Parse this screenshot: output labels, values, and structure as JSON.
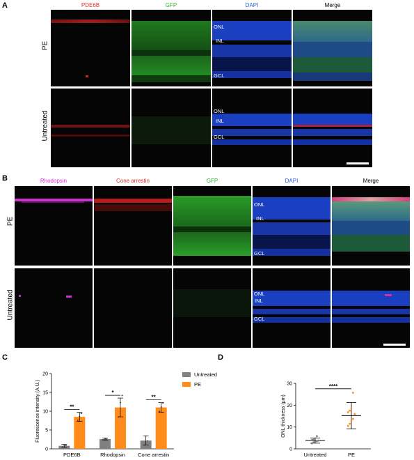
{
  "figure": {
    "panel_labels": {
      "a": "A",
      "b": "B",
      "c": "C",
      "d": "D"
    },
    "colors": {
      "red": "#e03030",
      "green": "#30b030",
      "blue": "#2a5dd8",
      "magenta": "#e030e0",
      "gray": "#808080",
      "orange": "#ff8c1a"
    }
  },
  "panel_a": {
    "headers": [
      "PDE6B",
      "GFP",
      "DAPI",
      "Merge"
    ],
    "header_colors": [
      "#e03030",
      "#30b030",
      "#2a5dd8",
      "#000000"
    ],
    "rows": [
      "PE",
      "Untreated"
    ],
    "layers_top": [
      "ONL",
      "INL",
      "GCL"
    ],
    "layers_bottom": [
      "ONL",
      "INL",
      "GCL"
    ]
  },
  "panel_b": {
    "headers": [
      "Rhodopsin",
      "Cone arrestin",
      "GFP",
      "DAPI",
      "Merge"
    ],
    "header_colors": [
      "#e030e0",
      "#e03030",
      "#30b030",
      "#2a5dd8",
      "#000000"
    ],
    "rows": [
      "PE",
      "Untreated"
    ],
    "layers_top": [
      "ONL",
      "INL",
      "GCL"
    ],
    "layers_bottom": [
      "ONL",
      "INL",
      "GCL"
    ]
  },
  "chart_data": [
    {
      "type": "bar",
      "categories": [
        "PDE6B",
        "Rhodopsin",
        "Cone arrestin"
      ],
      "series": [
        {
          "name": "Untreated",
          "values": [
            0.8,
            2.6,
            2.2
          ],
          "errors": [
            0.4,
            0.3,
            1.2
          ],
          "color": "#808080",
          "points": [
            [
              0.5,
              1.0,
              0.9
            ],
            [
              2.4,
              2.7,
              2.6
            ],
            [
              1.0,
              3.4,
              2.1
            ]
          ]
        },
        {
          "name": "PE",
          "values": [
            8.5,
            11.0,
            11.0
          ],
          "errors": [
            1.2,
            2.5,
            1.3
          ],
          "color": "#ff8c1a",
          "points": [
            [
              7.6,
              8.6,
              9.4
            ],
            [
              8.5,
              12.3,
              14.2
            ],
            [
              9.9,
              11.1,
              12.2
            ]
          ]
        }
      ],
      "significance": [
        "**",
        "*",
        "**"
      ],
      "ylabel": "Fluorescence intensity (A.U.)",
      "ylim": [
        0,
        20
      ],
      "yticks": [
        "0",
        "5",
        "10",
        "15",
        "20"
      ],
      "legend": "top-right"
    },
    {
      "type": "scatter",
      "categories": [
        "Untreated",
        "PE"
      ],
      "means": [
        3.8,
        15.2
      ],
      "sd": [
        1.2,
        6.0
      ],
      "points": [
        [
          2.5,
          3.0,
          3.3,
          3.5,
          3.8,
          4.0,
          4.3,
          4.8,
          5.8
        ],
        [
          10.5,
          11.5,
          12.8,
          13.7,
          16.0,
          16.8,
          17.5,
          18.5,
          25.7
        ]
      ],
      "colors": [
        "#808080",
        "#ff8c1a"
      ],
      "significance": "****",
      "ylabel": "ONL thickness (μm)",
      "ylim": [
        0,
        30
      ],
      "yticks": [
        "0",
        "10",
        "20",
        "30"
      ]
    }
  ]
}
